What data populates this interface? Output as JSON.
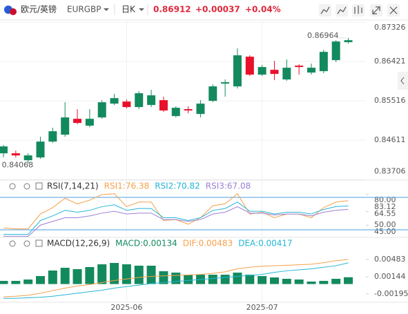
{
  "header": {
    "name": "欧元/英镑",
    "symbol": "EURGBP",
    "period": "日K",
    "price": "0.86912",
    "change": "+0.00037",
    "change_pct": "+0.04%"
  },
  "chart_data": [
    {
      "type": "candlestick",
      "up_color": "#138a5e",
      "down_color": "#e8102a",
      "categories": [
        null,
        null,
        null,
        null,
        null,
        null,
        null,
        null,
        null,
        null,
        "2025-06",
        null,
        null,
        null,
        null,
        null,
        null,
        null,
        null,
        null,
        null,
        "2025-07",
        null,
        null,
        null,
        null,
        null,
        null,
        null
      ],
      "open": [
        0.84309,
        0.84309,
        0.8415,
        0.84214,
        0.84579,
        0.84738,
        0.85103,
        0.84944,
        0.85135,
        0.85452,
        0.855,
        0.85373,
        0.85421,
        0.85532,
        0.85166,
        0.85325,
        0.85214,
        0.85516,
        0.85913,
        0.85849,
        0.86532,
        0.86119,
        0.8623,
        0.86008,
        0.86326,
        0.86167,
        0.86199,
        0.86453,
        0.86866
      ],
      "high": [
        0.845,
        0.84372,
        0.84309,
        0.8469,
        0.84897,
        0.85484,
        0.85325,
        0.85325,
        0.85532,
        0.85675,
        0.85548,
        0.85738,
        0.8577,
        0.85611,
        0.85389,
        0.85389,
        0.85532,
        0.85897,
        0.86008,
        0.86723,
        0.86564,
        0.86342,
        0.86437,
        0.86469,
        0.86357,
        0.86373,
        0.86691,
        0.86913,
        0.86964
      ],
      "low": [
        0.84214,
        0.84214,
        0.84068,
        0.84182,
        0.84547,
        0.8469,
        0.84976,
        0.84912,
        0.85103,
        0.85421,
        0.85341,
        0.85325,
        0.85373,
        0.85262,
        0.85135,
        0.8523,
        0.85135,
        0.85484,
        0.85611,
        0.85802,
        0.86088,
        0.86088,
        0.85992,
        0.85976,
        0.86119,
        0.86119,
        0.86151,
        0.86405,
        0.86834
      ],
      "close": [
        0.84468,
        0.84261,
        0.84261,
        0.84579,
        0.84817,
        0.85135,
        0.85008,
        0.85103,
        0.85484,
        0.85579,
        0.85373,
        0.85691,
        0.85643,
        0.85294,
        0.85357,
        0.85294,
        0.85452,
        0.85849,
        0.85945,
        0.86564,
        0.86119,
        0.86294,
        0.86135,
        0.86278,
        0.86294,
        0.86278,
        0.86643,
        0.86882,
        0.86912
      ],
      "high_label": "0.86964",
      "low_label": "0.84068",
      "ylim": [
        0.837,
        0.8736
      ],
      "yticks": [
        0.87326,
        0.86421,
        0.85516,
        0.84611,
        0.83706
      ],
      "grid": true
    },
    {
      "type": "line",
      "title": "RSI(7,14,21)",
      "series": [
        {
          "name": "RSI1:76.38",
          "color": "#f5a04a",
          "values": [
            47,
            46,
            46,
            62,
            69,
            79,
            73,
            77,
            83,
            84,
            70,
            75,
            75,
            55,
            56,
            51,
            58,
            71,
            73,
            84,
            62,
            64,
            58,
            62,
            62,
            58,
            69,
            75,
            76.38
          ]
        },
        {
          "name": "RSI2:70.82",
          "color": "#22b5d6",
          "values": [
            40,
            40,
            40,
            55,
            60,
            66,
            64,
            66,
            70,
            72,
            66,
            68,
            68,
            58,
            58,
            55,
            58,
            66,
            68,
            75,
            65,
            65,
            62,
            64,
            64,
            62,
            67,
            70,
            70.82
          ]
        },
        {
          "name": "RSI3:67.08",
          "color": "#9b7fd4",
          "values": [
            38,
            38,
            38,
            50,
            54,
            58,
            58,
            60,
            63,
            65,
            62,
            63,
            63,
            56,
            56,
            54,
            56,
            62,
            64,
            70,
            63,
            63,
            61,
            62,
            62,
            60,
            64,
            66,
            67.08
          ]
        }
      ],
      "ref_lines": [
        80,
        45
      ],
      "ref_color": "#4a9fe0",
      "ylim": [
        36,
        84.5
      ],
      "yticks": [
        {
          "value": 80,
          "label": "80.00"
        },
        83.12,
        64.55,
        {
          "value": 50,
          "label": "50.00"
        },
        {
          "value": 45,
          "label": "45.00"
        }
      ]
    },
    {
      "type": "combo",
      "title": "MACD(12,26,9)",
      "series": [
        {
          "name": "MACD:0.00134",
          "type": "bar",
          "color": "#138a5e",
          "values": [
            0.00062,
            0.00062,
            0.00089,
            0.00157,
            0.00266,
            0.0032,
            0.00293,
            0.00334,
            0.00388,
            0.00415,
            0.00388,
            0.00361,
            0.00361,
            0.00252,
            0.00225,
            0.00184,
            0.00184,
            0.00184,
            0.00184,
            0.00225,
            0.00184,
            0.00157,
            0.0013,
            0.00103,
            0.00089,
            0.00049,
            0.00062,
            0.00103,
            0.00134
          ]
        },
        {
          "name": "DIF:0.00483",
          "type": "line",
          "color": "#f5a04a",
          "values": [
            -0.0025,
            -0.0024,
            -0.0022,
            -0.0018,
            -0.0013,
            -0.0008,
            -0.0004,
            -0.0001,
            0.0003,
            0.0007,
            0.001,
            0.0013,
            0.0015,
            0.0016,
            0.0017,
            0.0018,
            0.0019,
            0.0021,
            0.0024,
            0.003,
            0.0033,
            0.0035,
            0.0036,
            0.0037,
            0.0038,
            0.0039,
            0.0042,
            0.0046,
            0.00483
          ]
        },
        {
          "name": "DEA:0.00417",
          "type": "line",
          "color": "#22b5d6",
          "values": [
            -0.0028,
            -0.0028,
            -0.0027,
            -0.0026,
            -0.0024,
            -0.0021,
            -0.0018,
            -0.0015,
            -0.0012,
            -0.0008,
            -0.0005,
            -0.0002,
            0.0001,
            0.0003,
            0.0005,
            0.0007,
            0.0009,
            0.0011,
            0.0013,
            0.0015,
            0.0017,
            0.0019,
            0.0023,
            0.0026,
            0.0028,
            0.003,
            0.0033,
            0.0036,
            0.00417
          ]
        }
      ],
      "ylim": [
        -0.00358,
        0.007
      ],
      "yticks": [
        0.00483,
        0.00144,
        -0.00195
      ]
    }
  ]
}
